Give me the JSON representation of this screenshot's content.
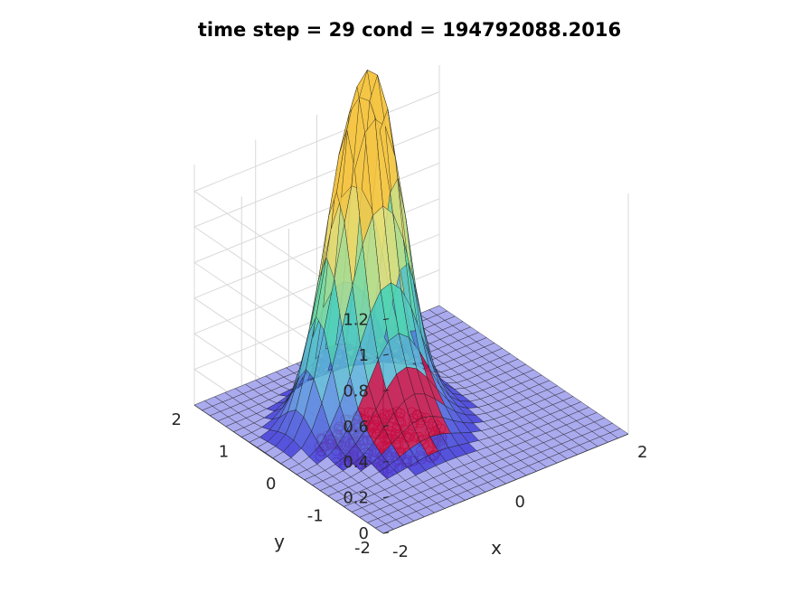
{
  "chart_data": {
    "type": "surface3d",
    "title": "time step = 29 cond = 194792088.2016",
    "xlabel": "x",
    "ylabel": "y",
    "zlabel": "",
    "xlim": [
      -2,
      2
    ],
    "ylim": [
      -2,
      2
    ],
    "zlim": [
      0,
      1.35
    ],
    "x_ticks": [
      {
        "value": -2,
        "label": "-2"
      },
      {
        "value": 0,
        "label": "0"
      },
      {
        "value": 2,
        "label": "2"
      }
    ],
    "y_ticks": [
      {
        "value": -2,
        "label": "-2"
      },
      {
        "value": -1,
        "label": "-1"
      },
      {
        "value": 0,
        "label": "0"
      },
      {
        "value": 1,
        "label": "1"
      },
      {
        "value": 2,
        "label": "2"
      }
    ],
    "z_ticks": [
      {
        "value": 0,
        "label": "0"
      },
      {
        "value": 0.2,
        "label": "0.2"
      },
      {
        "value": 0.4,
        "label": "0.4"
      },
      {
        "value": 0.6,
        "label": "0.6"
      },
      {
        "value": 0.8,
        "label": "0.8"
      },
      {
        "value": 1,
        "label": "1"
      },
      {
        "value": 1.2,
        "label": "1.2"
      }
    ],
    "grid": true,
    "surface": {
      "grid_size": 25,
      "peaks": [
        {
          "x": -0.55,
          "y": 0.55,
          "height": 1.34,
          "spread": 0.32
        },
        {
          "x": 0.0,
          "y": 0.55,
          "height": 1.21,
          "spread": 0.3
        },
        {
          "x": -0.35,
          "y": -0.05,
          "height": 0.45,
          "spread": 0.45
        },
        {
          "x": -1.1,
          "y": 0.45,
          "height": 0.42,
          "spread": 0.28
        }
      ]
    },
    "scatter": {
      "marker": "circle",
      "color": "#e8141c",
      "z": 0,
      "clusters": [
        {
          "x": -0.55,
          "y": -0.2,
          "radius": 0.75,
          "count": 200
        },
        {
          "x": -1.0,
          "y": -0.1,
          "radius": 0.55,
          "count": 60
        },
        {
          "x": -1.35,
          "y": -0.75,
          "radius": 0.35,
          "count": 25
        }
      ]
    },
    "colors": {
      "colormap": [
        "#3b2fd6",
        "#5da9e0",
        "#4fd6b0",
        "#e6df78",
        "#f5c542"
      ],
      "floor": "#aaaaee",
      "dense_region": "#c0104a",
      "edge": "#1a1a1a"
    }
  }
}
